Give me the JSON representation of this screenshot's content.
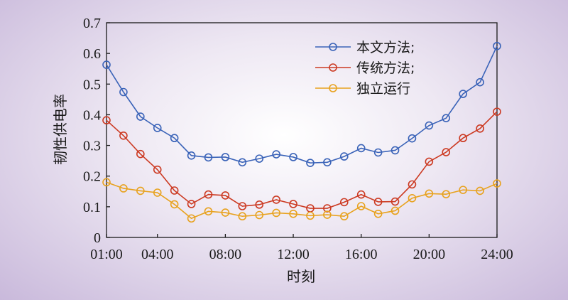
{
  "chart_data": {
    "type": "line",
    "xlabel": "时刻",
    "ylabel": "韧性供电率",
    "x_tick_labels": [
      "01:00",
      "04:00",
      "08:00",
      "12:00",
      "16:00",
      "20:00",
      "24:00"
    ],
    "x_tick_hours": [
      1,
      4,
      8,
      12,
      16,
      20,
      24
    ],
    "y_tick_labels": [
      "0",
      "0.1",
      "0.2",
      "0.3",
      "0.4",
      "0.5",
      "0.6",
      "0.7"
    ],
    "xlim": [
      1,
      24
    ],
    "ylim": [
      0,
      0.7
    ],
    "grid": false,
    "legend_position": "top-right",
    "x": [
      1,
      2,
      3,
      4,
      5,
      6,
      7,
      8,
      9,
      10,
      11,
      12,
      13,
      14,
      15,
      16,
      17,
      18,
      19,
      20,
      21,
      22,
      23,
      24
    ],
    "series": [
      {
        "name": "本文方法;",
        "color": "#3a63b8",
        "values": [
          0.563,
          0.474,
          0.394,
          0.357,
          0.324,
          0.267,
          0.261,
          0.262,
          0.245,
          0.257,
          0.271,
          0.262,
          0.243,
          0.245,
          0.264,
          0.291,
          0.277,
          0.284,
          0.323,
          0.365,
          0.389,
          0.468,
          0.506,
          0.624
        ]
      },
      {
        "name": "传统方法;",
        "color": "#cc3a22",
        "values": [
          0.382,
          0.332,
          0.272,
          0.221,
          0.153,
          0.109,
          0.14,
          0.137,
          0.102,
          0.107,
          0.123,
          0.109,
          0.095,
          0.095,
          0.115,
          0.14,
          0.116,
          0.117,
          0.173,
          0.247,
          0.278,
          0.324,
          0.355,
          0.41
        ]
      },
      {
        "name": "独立运行",
        "color": "#e8a21e",
        "values": [
          0.18,
          0.16,
          0.152,
          0.146,
          0.108,
          0.062,
          0.085,
          0.081,
          0.069,
          0.073,
          0.08,
          0.077,
          0.071,
          0.074,
          0.069,
          0.102,
          0.077,
          0.087,
          0.128,
          0.143,
          0.141,
          0.155,
          0.152,
          0.176
        ]
      }
    ]
  }
}
